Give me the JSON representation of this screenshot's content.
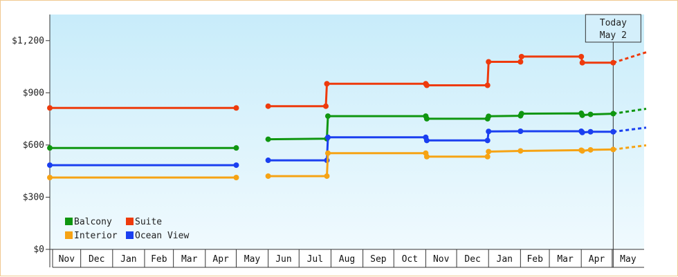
{
  "chart_data": {
    "type": "line",
    "line_style": "step",
    "title": "",
    "xlabel": "",
    "ylabel": "",
    "ylim": [
      0,
      1350
    ],
    "y_ticks": [
      0,
      300,
      600,
      900,
      1200
    ],
    "y_tick_labels": [
      "$0",
      "$300",
      "$600",
      "$900",
      "$1,200"
    ],
    "x_range": [
      "2024-11-01",
      "2026-06-01"
    ],
    "month_labels": [
      "Nov",
      "Dec",
      "Jan",
      "Feb",
      "Mar",
      "Apr",
      "May",
      "Jun",
      "Jul",
      "Aug",
      "Sep",
      "Oct",
      "Nov",
      "Dec",
      "Jan",
      "Feb",
      "Mar",
      "Apr",
      "May"
    ],
    "today": {
      "line1": "Today",
      "line2": "May 2",
      "date": "2026-05-02"
    },
    "grid": false,
    "legend_position": "bottom-left",
    "series": [
      {
        "name": "Suite",
        "color": "#ee3a0c",
        "points": [
          [
            "2024-11-01",
            813
          ],
          [
            "2025-05-01",
            813
          ],
          null,
          [
            "2025-06-01",
            823
          ],
          [
            "2025-07-27",
            823
          ],
          [
            "2025-07-28",
            952
          ],
          [
            "2025-11-01",
            952
          ],
          [
            "2025-11-02",
            943
          ],
          [
            "2025-12-31",
            943
          ],
          [
            "2026-01-01",
            1078
          ],
          [
            "2026-02-01",
            1078
          ],
          [
            "2026-02-02",
            1108
          ],
          [
            "2026-04-01",
            1108
          ],
          [
            "2026-04-02",
            1073
          ],
          [
            "2026-05-02",
            1073
          ]
        ],
        "projection": [
          [
            "2026-05-02",
            1073
          ],
          [
            "2026-06-03",
            1133
          ]
        ]
      },
      {
        "name": "Balcony",
        "color": "#0f9610",
        "points": [
          [
            "2024-11-01",
            583
          ],
          [
            "2025-05-01",
            583
          ],
          null,
          [
            "2025-06-01",
            633
          ],
          [
            "2025-07-28",
            636
          ],
          [
            "2025-07-29",
            766
          ],
          [
            "2025-11-01",
            766
          ],
          [
            "2025-11-02",
            751
          ],
          [
            "2025-12-31",
            751
          ],
          [
            "2026-01-01",
            765
          ],
          [
            "2026-02-01",
            768
          ],
          [
            "2026-02-02",
            780
          ],
          [
            "2026-04-01",
            782
          ],
          [
            "2026-04-02",
            771
          ],
          [
            "2026-04-10",
            776
          ],
          [
            "2026-05-02",
            780
          ]
        ],
        "projection": [
          [
            "2026-05-02",
            780
          ],
          [
            "2026-06-03",
            808
          ]
        ]
      },
      {
        "name": "Ocean View",
        "color": "#1a3ff0",
        "points": [
          [
            "2024-11-01",
            484
          ],
          [
            "2025-05-01",
            484
          ],
          null,
          [
            "2025-06-01",
            512
          ],
          [
            "2025-07-28",
            512
          ],
          [
            "2025-07-29",
            644
          ],
          [
            "2025-11-01",
            644
          ],
          [
            "2025-11-02",
            626
          ],
          [
            "2025-12-31",
            626
          ],
          [
            "2026-01-01",
            678
          ],
          [
            "2026-02-01",
            679
          ],
          [
            "2026-04-01",
            679
          ],
          [
            "2026-04-02",
            672
          ],
          [
            "2026-04-10",
            676
          ],
          [
            "2026-05-02",
            676
          ]
        ],
        "projection": [
          [
            "2026-05-02",
            676
          ],
          [
            "2026-06-03",
            700
          ]
        ]
      },
      {
        "name": "Interior",
        "color": "#f6a314",
        "points": [
          [
            "2024-11-01",
            413
          ],
          [
            "2025-05-01",
            413
          ],
          null,
          [
            "2025-06-01",
            421
          ],
          [
            "2025-07-28",
            421
          ],
          [
            "2025-07-29",
            553
          ],
          [
            "2025-11-01",
            553
          ],
          [
            "2025-11-02",
            533
          ],
          [
            "2025-12-31",
            533
          ],
          [
            "2026-01-01",
            562
          ],
          [
            "2026-02-01",
            566
          ],
          [
            "2026-04-01",
            570
          ],
          [
            "2026-04-02",
            566
          ],
          [
            "2026-04-10",
            572
          ],
          [
            "2026-05-02",
            574
          ]
        ],
        "projection": [
          [
            "2026-05-02",
            574
          ],
          [
            "2026-06-03",
            598
          ]
        ]
      }
    ],
    "legend": [
      {
        "name": "Balcony",
        "color": "#0f9610"
      },
      {
        "name": "Suite",
        "color": "#ee3a0c"
      },
      {
        "name": "Interior",
        "color": "#f6a314"
      },
      {
        "name": "Ocean View",
        "color": "#1a3ff0"
      }
    ]
  }
}
